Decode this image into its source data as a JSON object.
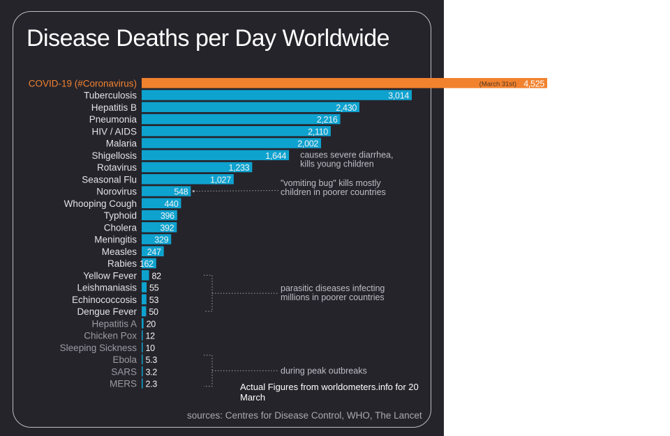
{
  "chart_data": {
    "type": "bar",
    "orientation": "horizontal",
    "title": "Disease Deaths per Day Worldwide",
    "colors": {
      "highlight": "#f2822e",
      "bar": "#0ea2cf",
      "label_bright": "#ffffff",
      "label_dim": "#9b9ba4",
      "highlight_label": "#f2822e",
      "panel": "#26242b"
    },
    "categories": [
      "COVID-19 (#Coronavirus)",
      "Tuberculosis",
      "Hepatitis B",
      "Pneumonia",
      "HIV / AIDS",
      "Malaria",
      "Shigellosis",
      "Rotavirus",
      "Seasonal Flu",
      "Norovirus",
      "Whooping Cough",
      "Typhoid",
      "Cholera",
      "Meningitis",
      "Measles",
      "Rabies",
      "Yellow Fever",
      "Leishmaniasis",
      "Echinococcosis",
      "Dengue Fever",
      "Hepatitis A",
      "Chicken Pox",
      "Sleeping Sickness",
      "Ebola",
      "SARS",
      "MERS"
    ],
    "values": [
      4525,
      3014,
      2430,
      2216,
      2110,
      2002,
      1644,
      1233,
      1027,
      548,
      440,
      396,
      392,
      329,
      247,
      162,
      82,
      55,
      53,
      50,
      20,
      12,
      10,
      5.3,
      3.2,
      2.3
    ],
    "value_labels": [
      "4,525",
      "3,014",
      "2,430",
      "2,216",
      "2,110",
      "2,002",
      "1,644",
      "1,233",
      "1,027",
      "548",
      "440",
      "396",
      "392",
      "329",
      "247",
      "162",
      "82",
      "55",
      "53",
      "50",
      "20",
      "12",
      "10",
      "5.3",
      "3.2",
      "2.3"
    ],
    "highlight_index": 0,
    "highlight_date_label": "(March 31st)",
    "annotations": [
      {
        "text": [
          "causes severe diarrhea,",
          "kills young children"
        ],
        "target": "Shigellosis"
      },
      {
        "text": [
          "\"vomiting bug\" kills mostly",
          "children in poorer countries"
        ],
        "target": "Norovirus"
      },
      {
        "text": [
          "parasitic diseases infecting",
          "millions in poorer countries"
        ],
        "target": [
          "Yellow Fever",
          "Leishmaniasis",
          "Echinococcosis",
          "Dengue Fever"
        ]
      },
      {
        "text": [
          "during peak outbreaks"
        ],
        "target": [
          "Ebola",
          "SARS",
          "MERS"
        ]
      }
    ]
  },
  "note": "Actual Figures from worldometers.info for 20 March",
  "sources": "sources: Centres for Disease Control, WHO, The Lancet"
}
